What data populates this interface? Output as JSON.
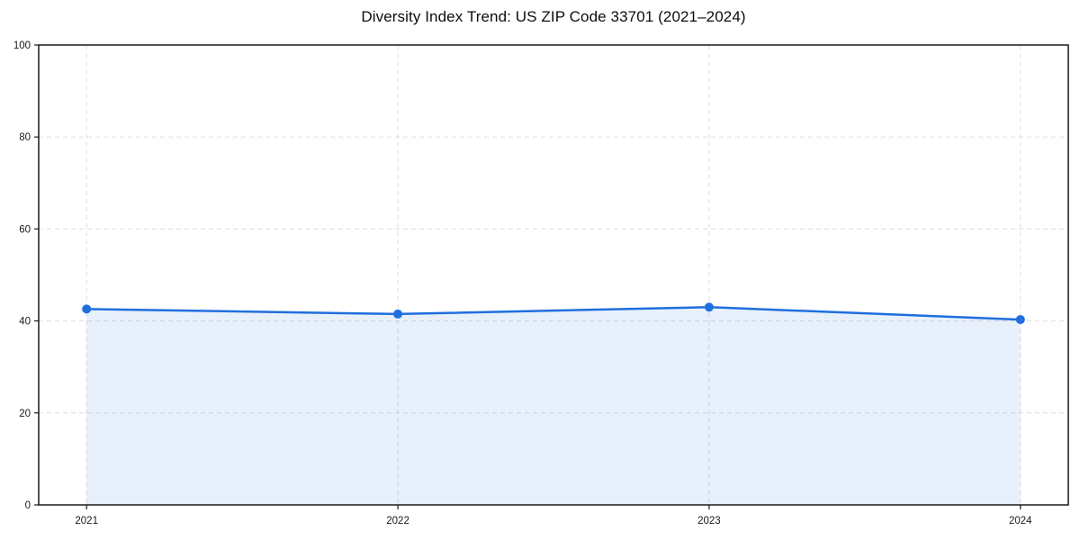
{
  "title": "Diversity Index Trend: US ZIP Code 33701 (2021–2024)",
  "chart_data": {
    "type": "area",
    "title": "Diversity Index Trend: US ZIP Code 33701 (2021–2024)",
    "categories": [
      "2021",
      "2022",
      "2023",
      "2024"
    ],
    "series": [
      {
        "name": "Diversity Index",
        "values": [
          42.6,
          41.5,
          43.0,
          40.3
        ]
      }
    ],
    "xlabel": "",
    "ylabel": "",
    "ylim": [
      0,
      100
    ],
    "yticks": [
      0,
      20,
      40,
      60,
      80,
      100
    ],
    "grid": true,
    "grid_style": "dashed",
    "legend": false,
    "line_color": "#1f6fde",
    "marker": "circle",
    "fill_color": "#1f6fde",
    "fill_opacity": 0.1,
    "grid_color": "#dddddd",
    "axis_color": "#1a1a1a",
    "background_color": "#ffffff"
  }
}
